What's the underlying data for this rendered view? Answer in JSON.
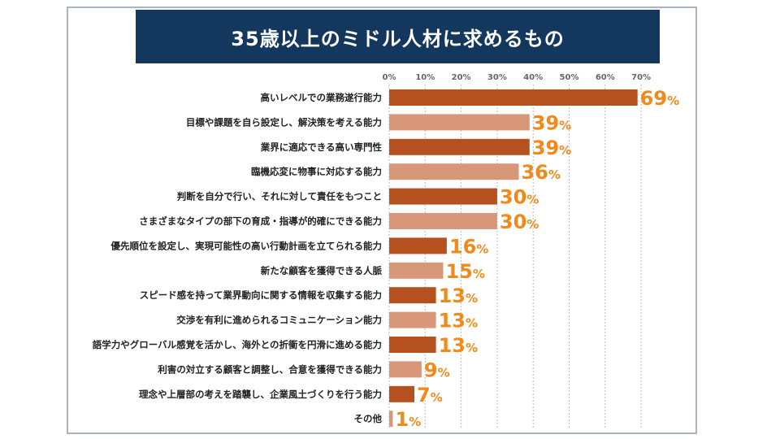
{
  "chart_data": {
    "type": "bar",
    "orientation": "horizontal",
    "title": "35歳以上のミドル人材に求めるもの",
    "categories": [
      "高いレベルでの業務遂行能力",
      "目標や課題を自ら設定し、解決策を考える能力",
      "業界に適応できる高い専門性",
      "臨機応変に物事に対応する能力",
      "判断を自分で行い、それに対して責任をもつこと",
      "さまざまなタイプの部下の育成・指導が的確にできる能力",
      "優先順位を設定し、実現可能性の高い行動計画を立てられる能力",
      "新たな顧客を獲得できる人脈",
      "スピード感を持って業界動向に関する情報を収集する能力",
      "交渉を有利に進められるコミュニケーション能力",
      "語学力やグローバル感覚を活かし、海外との折衝を円滑に進める能力",
      "利害の対立する顧客と調整し、合意を獲得できる能力",
      "理念や上層部の考えを踏襲し、企業風土づくりを行う能力",
      "その他"
    ],
    "values": [
      69,
      39,
      39,
      36,
      30,
      30,
      16,
      15,
      13,
      13,
      13,
      9,
      7,
      1
    ],
    "unit": "%",
    "xlim": [
      0,
      70
    ],
    "xticks": [
      "0%",
      "10%",
      "20%",
      "30%",
      "40%",
      "50%",
      "60%",
      "70%"
    ],
    "tick_values": [
      0,
      10,
      20,
      30,
      40,
      50,
      60,
      70
    ],
    "grid": "vertical dotted",
    "colors": {
      "bar_dark": "#b5501f",
      "bar_light": "#d9977a",
      "value_label": "#f08a1c",
      "title_bg": "#14375e"
    }
  }
}
